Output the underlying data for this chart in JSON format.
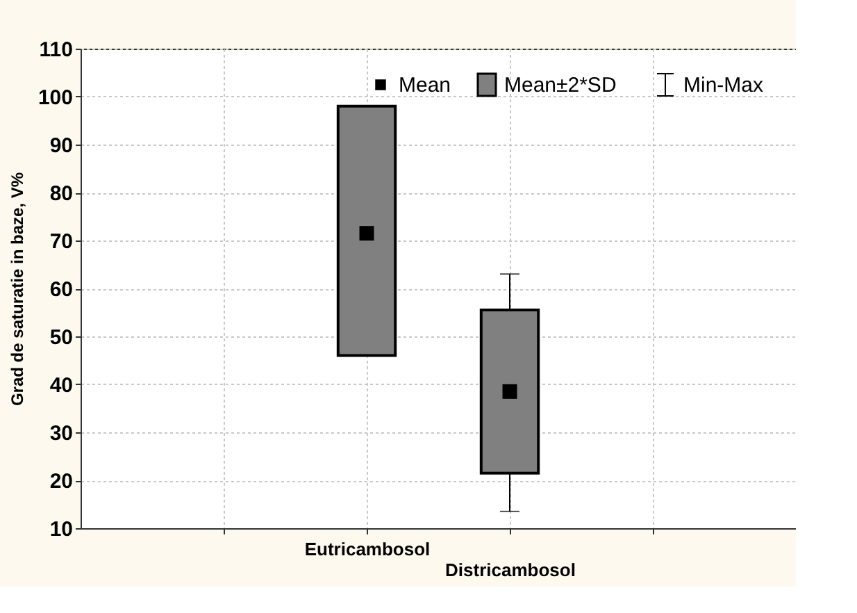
{
  "chart_data": {
    "type": "box",
    "ylabel": "Grad de saturatie in baze, V%",
    "categories": [
      "Eutricambosol",
      "Districambosol"
    ],
    "ylim": [
      10,
      110
    ],
    "yticks": [
      10,
      20,
      30,
      40,
      50,
      60,
      70,
      80,
      90,
      100,
      110
    ],
    "grid": true,
    "legend": "top right",
    "marker": "square",
    "annotations": [
      "Min-Max"
    ],
    "series": [
      {
        "name": "Mean",
        "type": "scatter",
        "color": "#000000",
        "values": [
          71.5,
          38.5
        ]
      },
      {
        "name": "Mean±2*SD",
        "color": "#808080",
        "boxes": [
          {
            "q1": 46,
            "q3": 98
          },
          {
            "low": 13.5,
            "q1": 21.5,
            "q3": 55.5,
            "high": 63
          }
        ]
      }
    ]
  }
}
